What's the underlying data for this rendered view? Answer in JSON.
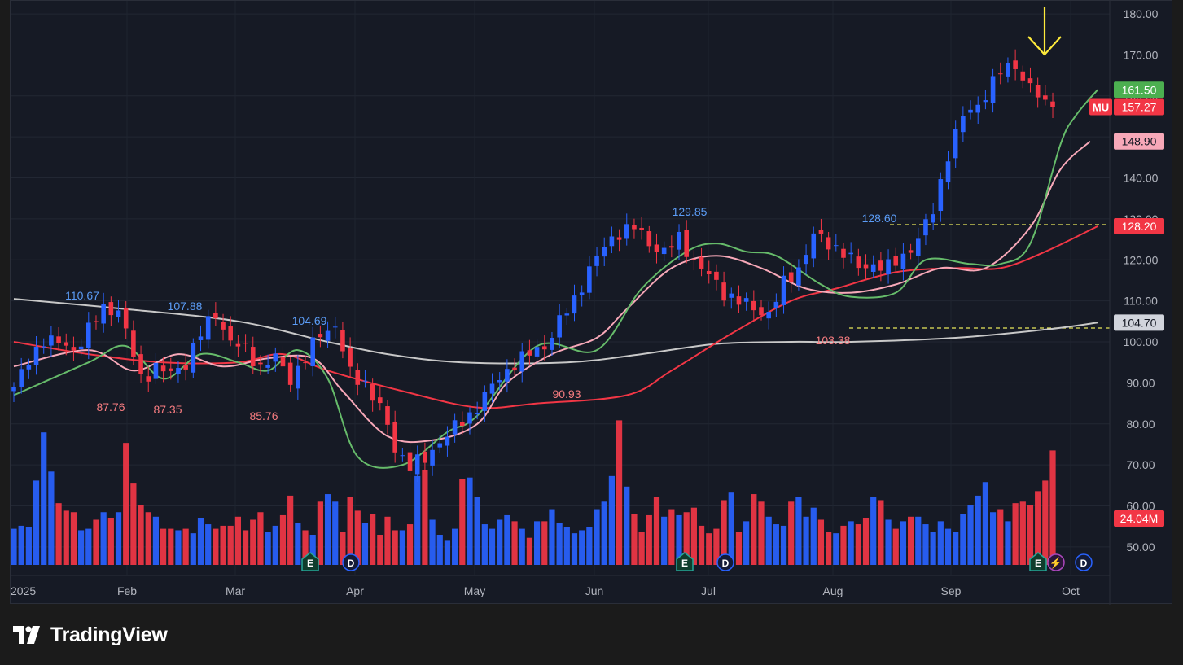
{
  "brand": {
    "name": "TradingView",
    "logo_icon": "tradingview-logo-icon"
  },
  "chart_data": {
    "type": "candlestick",
    "ticker": "MU",
    "y_axis": {
      "min": 46,
      "max": 182,
      "ticks": [
        "50.00",
        "60.00",
        "70.00",
        "80.00",
        "90.00",
        "100.00",
        "110.00",
        "120.00",
        "130.00",
        "140.00",
        "150.00",
        "160.00",
        "170.00",
        "180.00"
      ]
    },
    "x_axis": {
      "start_label": "2025",
      "month_labels": [
        "Feb",
        "Mar",
        "Apr",
        "May",
        "Jun",
        "Jul",
        "Aug",
        "Sep",
        "Oct"
      ]
    },
    "price_labels": [
      {
        "label": "MU",
        "value": "157.27",
        "color": "#f23645",
        "kind": "last-price"
      },
      {
        "value": "161.50",
        "color": "#4caf50",
        "kind": "sma-10"
      },
      {
        "value": "148.90",
        "color": "#f7a8b8",
        "kind": "sma-20"
      },
      {
        "value": "128.20",
        "color": "#f23645",
        "kind": "sma-50"
      },
      {
        "value": "104.70",
        "color": "#d1d4dc",
        "kind": "sma-200"
      },
      {
        "value": "24.04M",
        "color": "#f23645",
        "kind": "volume"
      }
    ],
    "annotations": [
      {
        "text": "110.67",
        "color": "#5b9cf6",
        "type": "high"
      },
      {
        "text": "107.88",
        "color": "#5b9cf6",
        "type": "high"
      },
      {
        "text": "104.69",
        "color": "#5b9cf6",
        "type": "high"
      },
      {
        "text": "129.85",
        "color": "#5b9cf6",
        "type": "high"
      },
      {
        "text": "128.60",
        "color": "#5b9cf6",
        "type": "high"
      },
      {
        "text": "87.76",
        "color": "#f77c80",
        "type": "low"
      },
      {
        "text": "87.35",
        "color": "#f77c80",
        "type": "low"
      },
      {
        "text": "85.76",
        "color": "#f77c80",
        "type": "low"
      },
      {
        "text": "90.93",
        "color": "#f77c80",
        "type": "low"
      },
      {
        "text": "103.38",
        "color": "#f77c80",
        "type": "low"
      }
    ],
    "horizontal_levels": [
      128.6,
      103.38
    ],
    "events": [
      {
        "label": "E",
        "kind": "earnings"
      },
      {
        "label": "D",
        "kind": "dividend"
      },
      {
        "label": "E",
        "kind": "earnings"
      },
      {
        "label": "D",
        "kind": "dividend"
      },
      {
        "label": "E",
        "kind": "earnings"
      },
      {
        "label": "⚡",
        "kind": "news"
      },
      {
        "label": "D",
        "kind": "dividend"
      }
    ],
    "colors": {
      "up": "#2962ff",
      "down": "#f23645",
      "sma10": "#66bb6a",
      "sma20": "#f7a8b8",
      "sma50": "#f23645",
      "sma200": "#c8c8c8",
      "arrow": "#ffeb3b",
      "level": "#e8e85a"
    },
    "ma_anchor_points": {
      "sma10": [
        [
          0,
          87
        ],
        [
          10,
          95
        ],
        [
          15,
          99
        ],
        [
          20,
          91
        ],
        [
          25,
          97
        ],
        [
          30,
          95
        ],
        [
          34,
          93
        ],
        [
          38,
          98
        ],
        [
          42,
          91
        ],
        [
          46,
          72
        ],
        [
          52,
          70
        ],
        [
          58,
          78
        ],
        [
          62,
          82
        ],
        [
          70,
          99
        ],
        [
          78,
          98
        ],
        [
          84,
          113
        ],
        [
          90,
          122
        ],
        [
          94,
          124
        ],
        [
          98,
          122
        ],
        [
          102,
          121
        ],
        [
          108,
          114
        ],
        [
          112,
          111
        ],
        [
          118,
          112
        ],
        [
          122,
          120
        ],
        [
          128,
          119
        ],
        [
          132,
          119
        ],
        [
          136,
          124
        ],
        [
          140,
          148
        ],
        [
          142,
          155
        ],
        [
          145,
          161.5
        ]
      ],
      "sma20": [
        [
          0,
          94
        ],
        [
          10,
          98
        ],
        [
          16,
          93
        ],
        [
          22,
          97
        ],
        [
          28,
          94
        ],
        [
          34,
          96
        ],
        [
          40,
          96
        ],
        [
          44,
          88
        ],
        [
          50,
          77
        ],
        [
          56,
          76
        ],
        [
          62,
          80
        ],
        [
          66,
          90
        ],
        [
          72,
          97
        ],
        [
          78,
          101
        ],
        [
          82,
          108
        ],
        [
          88,
          118
        ],
        [
          94,
          121
        ],
        [
          100,
          118
        ],
        [
          106,
          113
        ],
        [
          112,
          112
        ],
        [
          118,
          114
        ],
        [
          124,
          118
        ],
        [
          130,
          118
        ],
        [
          136,
          128
        ],
        [
          140,
          142
        ],
        [
          144,
          148.9
        ]
      ],
      "sma50": [
        [
          0,
          100
        ],
        [
          10,
          97
        ],
        [
          20,
          95
        ],
        [
          30,
          95
        ],
        [
          36,
          97
        ],
        [
          42,
          93
        ],
        [
          52,
          88
        ],
        [
          62,
          84
        ],
        [
          70,
          85
        ],
        [
          82,
          87
        ],
        [
          88,
          93
        ],
        [
          96,
          102
        ],
        [
          104,
          110
        ],
        [
          110,
          113
        ],
        [
          118,
          117
        ],
        [
          126,
          118
        ],
        [
          132,
          118
        ],
        [
          138,
          122
        ],
        [
          145,
          128.2
        ]
      ],
      "sma200": [
        [
          0,
          110.5
        ],
        [
          15,
          108
        ],
        [
          30,
          105
        ],
        [
          42,
          100
        ],
        [
          50,
          97
        ],
        [
          60,
          95
        ],
        [
          74,
          95
        ],
        [
          84,
          97
        ],
        [
          94,
          99.5
        ],
        [
          104,
          100
        ],
        [
          112,
          100
        ],
        [
          126,
          101
        ],
        [
          138,
          103
        ],
        [
          145,
          104.7
        ]
      ]
    },
    "candle_anchor_points": [
      [
        0,
        89
      ],
      [
        4,
        101
      ],
      [
        8,
        98
      ],
      [
        12,
        108
      ],
      [
        14,
        108
      ],
      [
        17,
        91
      ],
      [
        19,
        94
      ],
      [
        21,
        92
      ],
      [
        23,
        95
      ],
      [
        25,
        102
      ],
      [
        27,
        107
      ],
      [
        29,
        100
      ],
      [
        31,
        98
      ],
      [
        33,
        94
      ],
      [
        35,
        96
      ],
      [
        37,
        91
      ],
      [
        39,
        96
      ],
      [
        41,
        102
      ],
      [
        43,
        104
      ],
      [
        45,
        92
      ],
      [
        47,
        90
      ],
      [
        49,
        84
      ],
      [
        51,
        74
      ],
      [
        53,
        70
      ],
      [
        55,
        71
      ],
      [
        57,
        76
      ],
      [
        59,
        79
      ],
      [
        61,
        82
      ],
      [
        63,
        87
      ],
      [
        65,
        91
      ],
      [
        67,
        95
      ],
      [
        69,
        97
      ],
      [
        71,
        99
      ],
      [
        73,
        105
      ],
      [
        75,
        110
      ],
      [
        77,
        118
      ],
      [
        79,
        123
      ],
      [
        81,
        127
      ],
      [
        83,
        128
      ],
      [
        85,
        124
      ],
      [
        87,
        122
      ],
      [
        89,
        125
      ],
      [
        91,
        120
      ],
      [
        93,
        116
      ],
      [
        95,
        112
      ],
      [
        97,
        110
      ],
      [
        99,
        108
      ],
      [
        101,
        107
      ],
      [
        103,
        114
      ],
      [
        105,
        118
      ],
      [
        107,
        126
      ],
      [
        109,
        124
      ],
      [
        111,
        122
      ],
      [
        113,
        118
      ],
      [
        115,
        119
      ],
      [
        117,
        118
      ],
      [
        119,
        121
      ],
      [
        121,
        125
      ],
      [
        123,
        132
      ],
      [
        125,
        146
      ],
      [
        127,
        155
      ],
      [
        129,
        158
      ],
      [
        131,
        163
      ],
      [
        132,
        166
      ],
      [
        134,
        168
      ],
      [
        135,
        164
      ],
      [
        137,
        160
      ],
      [
        138,
        158
      ],
      [
        139,
        157.27
      ]
    ],
    "candle_count": 140,
    "volume_relative": [
      0.24,
      0.26,
      0.25,
      0.56,
      0.88,
      0.62,
      0.41,
      0.36,
      0.35,
      0.23,
      0.24,
      0.3,
      0.35,
      0.31,
      0.35,
      0.81,
      0.54,
      0.4,
      0.35,
      0.32,
      0.24,
      0.24,
      0.23,
      0.24,
      0.21,
      0.31,
      0.27,
      0.24,
      0.26,
      0.26,
      0.32,
      0.23,
      0.3,
      0.35,
      0.22,
      0.26,
      0.33,
      0.46,
      0.28,
      0.23,
      0.2,
      0.42,
      0.47,
      0.42,
      0.22,
      0.45,
      0.36,
      0.28,
      0.34,
      0.2,
      0.32,
      0.23,
      0.23,
      0.27,
      0.59,
      0.63,
      0.3,
      0.2,
      0.16,
      0.24,
      0.57,
      0.58,
      0.45,
      0.27,
      0.24,
      0.3,
      0.33,
      0.29,
      0.24,
      0.18,
      0.29,
      0.29,
      0.37,
      0.28,
      0.25,
      0.21,
      0.23,
      0.25,
      0.37,
      0.42,
      0.59,
      0.96,
      0.52,
      0.34,
      0.22,
      0.33,
      0.45,
      0.32,
      0.37,
      0.33,
      0.35,
      0.38,
      0.26,
      0.21,
      0.24,
      0.43,
      0.48,
      0.22,
      0.29,
      0.47,
      0.42,
      0.32,
      0.27,
      0.26,
      0.42,
      0.45,
      0.32,
      0.38,
      0.3,
      0.22,
      0.21,
      0.26,
      0.29,
      0.27,
      0.31,
      0.45,
      0.43,
      0.3,
      0.24,
      0.29,
      0.32,
      0.32,
      0.27,
      0.22,
      0.29,
      0.24,
      0.22,
      0.34,
      0.4,
      0.46,
      0.55,
      0.35,
      0.37,
      0.29,
      0.41,
      0.42,
      0.4,
      0.49,
      0.56,
      0.76
    ]
  }
}
